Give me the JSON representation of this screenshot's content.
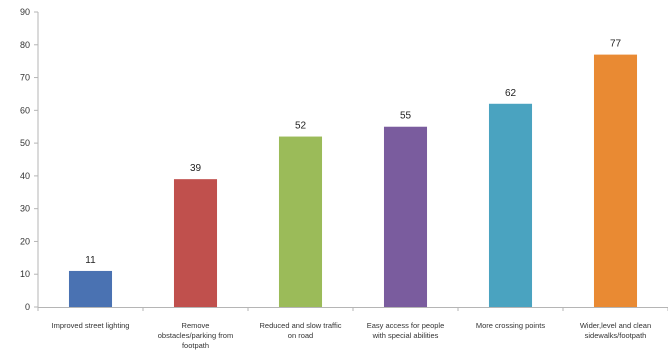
{
  "chart_data": {
    "type": "bar",
    "title": "",
    "xlabel": "",
    "ylabel": "",
    "ylim": [
      0,
      90
    ],
    "yticks": [
      0,
      10,
      20,
      30,
      40,
      50,
      60,
      70,
      80,
      90
    ],
    "grid": false,
    "legend": "none",
    "categories": [
      "Improved street lighting",
      "Remove obstacles/parking from footpath",
      "Reduced and slow traffic on road",
      "Easy access for people with special abilities",
      "More crossing points",
      "Wider,level and clean sidewalks/footpath"
    ],
    "category_lines": [
      [
        "Improved street lighting"
      ],
      [
        "Remove",
        "obstacles/parking from",
        "footpath"
      ],
      [
        "Reduced and slow traffic",
        "on road"
      ],
      [
        "Easy access for people",
        "with special abilities"
      ],
      [
        "More crossing points"
      ],
      [
        "Wider,level and clean",
        "sidewalks/footpath"
      ]
    ],
    "values": [
      11,
      39,
      52,
      55,
      62,
      77
    ],
    "data_labels": [
      "11",
      "39",
      "52",
      "55",
      "62",
      "77"
    ],
    "colors": [
      "#4a72b2",
      "#c0504d",
      "#9bbb59",
      "#7a5c9e",
      "#4aa3c0",
      "#e98a33"
    ]
  }
}
